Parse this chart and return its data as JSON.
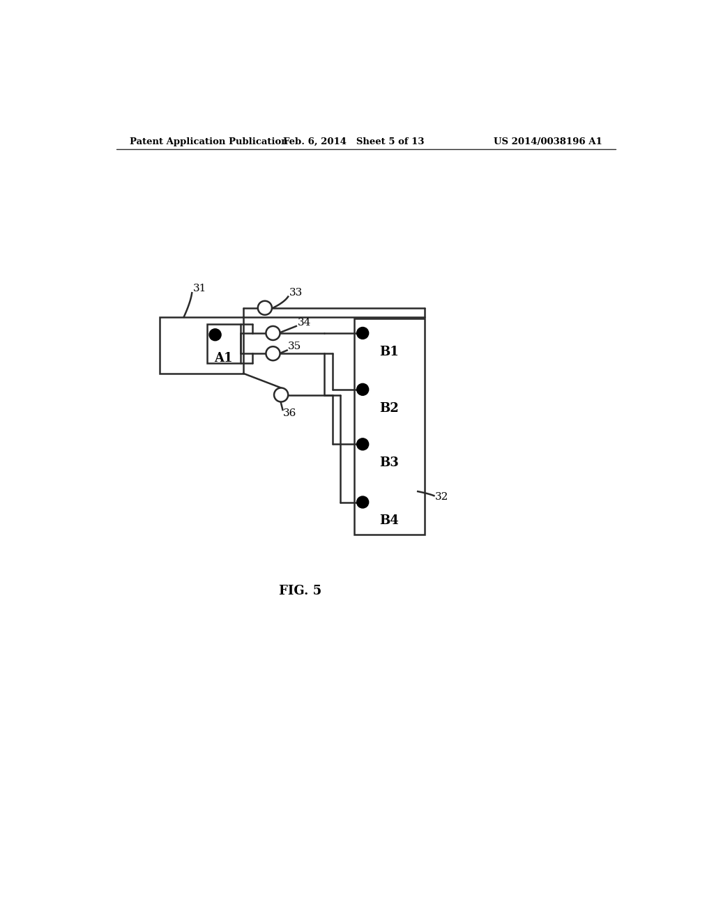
{
  "bg_color": "#ffffff",
  "line_color": "#2a2a2a",
  "header_left": "Patent Application Publication",
  "header_mid": "Feb. 6, 2014   Sheet 5 of 13",
  "header_right": "US 2014/0038196 A1",
  "fig_label": "FIG. 5"
}
